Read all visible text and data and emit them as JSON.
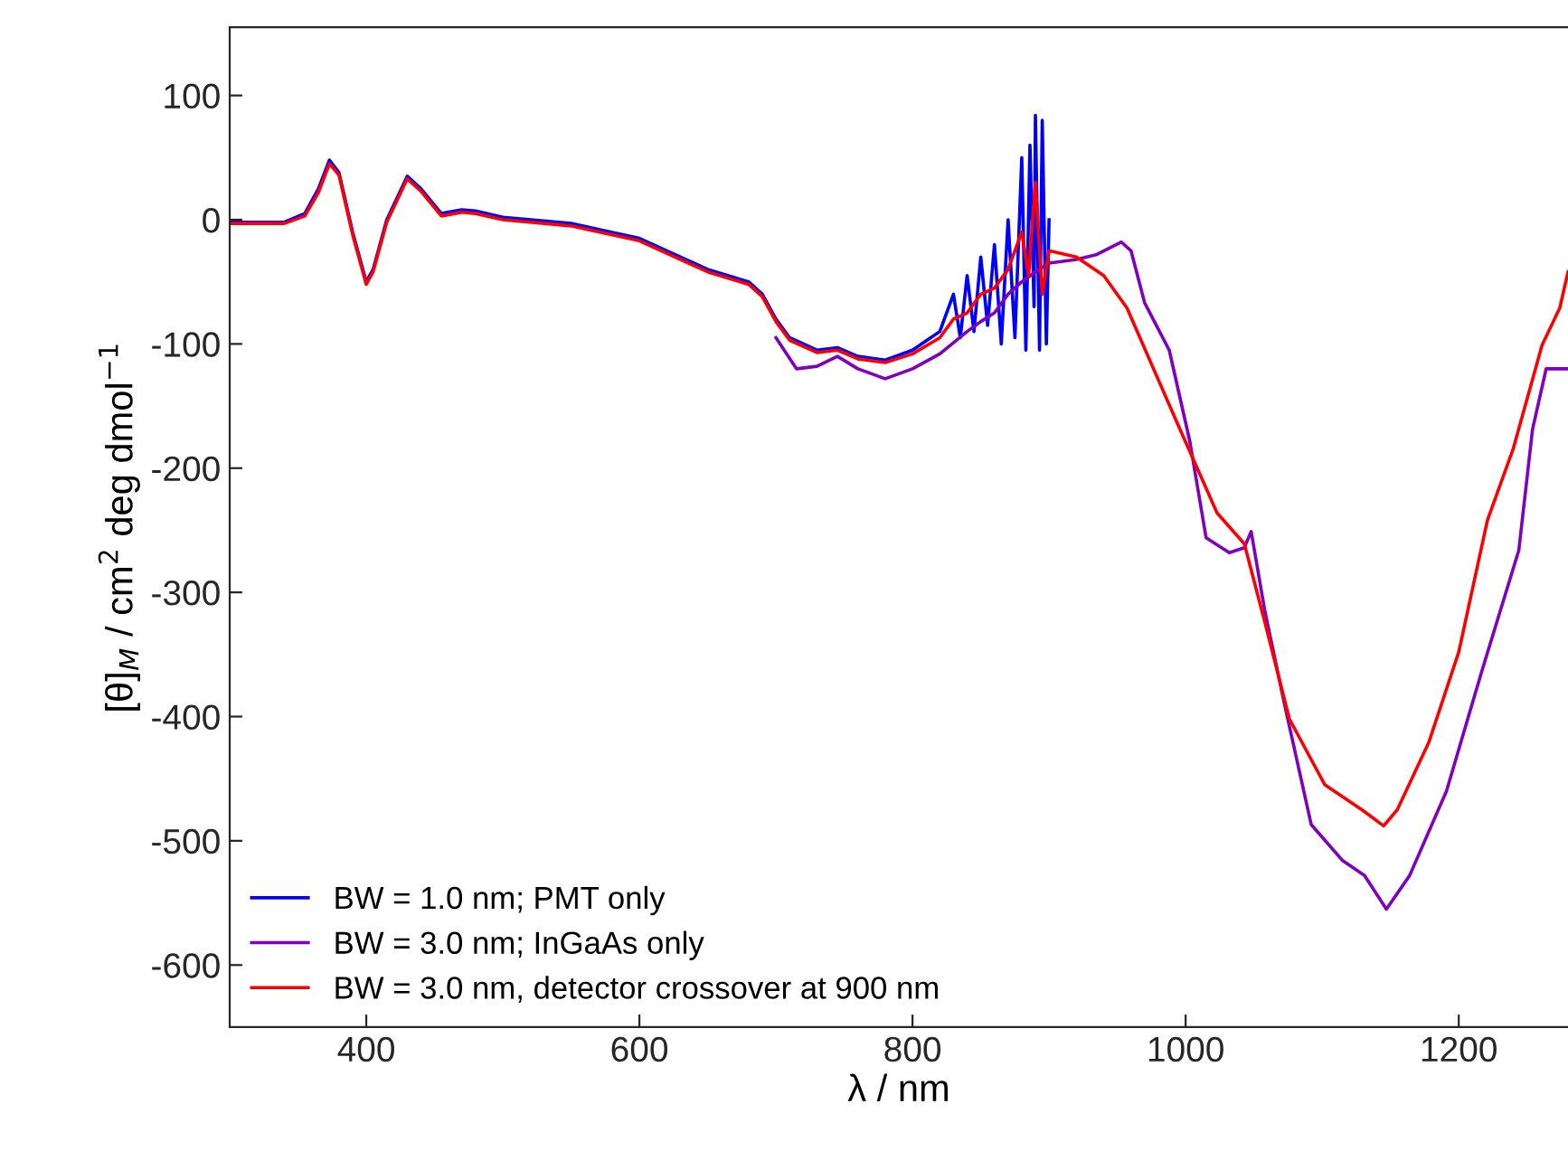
{
  "chart_data": {
    "type": "line",
    "xlabel": "λ / nm",
    "ylabel": "[θ]$_{M}$ / cm$^{2}$ deg dmol$^{−1}$",
    "xlim": [
      300,
      1280
    ],
    "ylim": [
      -650,
      155
    ],
    "xticks": [
      400,
      600,
      800,
      1000,
      1200
    ],
    "yticks": [
      -600,
      -500,
      -400,
      -300,
      -200,
      -100,
      0,
      100
    ],
    "grid": false,
    "legend": "bottom left",
    "line_style": "solid",
    "marker": "none",
    "series": [
      {
        "name": "BW = 1.0 nm; PMT only",
        "color": "#0000ff",
        "x": [
          300,
          340,
          355,
          365,
          373,
          380,
          390,
          400,
          405,
          415,
          430,
          440,
          455,
          470,
          480,
          500,
          550,
          600,
          650,
          680,
          690,
          700,
          710,
          730,
          745,
          760,
          780,
          800,
          820,
          830,
          835,
          840,
          845,
          850,
          855,
          860,
          865,
          870,
          875,
          880,
          883,
          886,
          889,
          890,
          893,
          895,
          898,
          900
        ],
        "values": [
          -2,
          -2,
          5,
          25,
          48,
          38,
          -10,
          -50,
          -40,
          0,
          35,
          25,
          5,
          8,
          7,
          2,
          -3,
          -15,
          -40,
          -50,
          -60,
          -80,
          -95,
          -105,
          -103,
          -110,
          -113,
          -105,
          -90,
          -60,
          -95,
          -45,
          -90,
          -30,
          -85,
          -20,
          -100,
          0,
          -95,
          50,
          -105,
          60,
          -70,
          84,
          -105,
          80,
          -100,
          0
        ]
      },
      {
        "name": "BW = 3.0 nm; InGaAs only",
        "color": "#7f00bf",
        "x": [
          700,
          715,
          730,
          745,
          760,
          780,
          800,
          820,
          840,
          850,
          860,
          870,
          880,
          890,
          900,
          920,
          935,
          953,
          960,
          970,
          988,
          1003,
          1015,
          1032,
          1043,
          1048,
          1058,
          1072,
          1092,
          1115,
          1131,
          1147,
          1164,
          1191,
          1217,
          1244,
          1254,
          1264,
          1280
        ],
        "values": [
          -95,
          -120,
          -118,
          -110,
          -120,
          -128,
          -120,
          -108,
          -90,
          -82,
          -75,
          -60,
          -50,
          -42,
          -35,
          -32,
          -28,
          -18,
          -25,
          -67,
          -105,
          -178,
          -256,
          -268,
          -264,
          -251,
          -315,
          -388,
          -487,
          -516,
          -528,
          -555,
          -528,
          -460,
          -363,
          -266,
          -169,
          -120,
          -120
        ]
      },
      {
        "name": "BW = 3.0 nm, detector crossover at 900 nm",
        "color": "#ff0000",
        "x": [
          300,
          340,
          355,
          365,
          373,
          380,
          390,
          400,
          405,
          415,
          430,
          440,
          455,
          470,
          480,
          500,
          550,
          600,
          650,
          680,
          690,
          700,
          710,
          730,
          745,
          760,
          780,
          800,
          820,
          830,
          840,
          850,
          860,
          870,
          880,
          885,
          890,
          895,
          900,
          920,
          940,
          957,
          996,
          1023,
          1043,
          1058,
          1076,
          1102,
          1129,
          1145,
          1155,
          1178,
          1200,
          1221,
          1240,
          1261,
          1274,
          1280
        ],
        "values": [
          -3,
          -3,
          3,
          22,
          45,
          36,
          -12,
          -52,
          -42,
          -2,
          33,
          23,
          3,
          6,
          5,
          0,
          -5,
          -17,
          -42,
          -52,
          -62,
          -82,
          -97,
          -107,
          -105,
          -112,
          -115,
          -108,
          -95,
          -80,
          -75,
          -60,
          -55,
          -40,
          -10,
          -45,
          30,
          -60,
          -25,
          -30,
          -45,
          -71,
          -169,
          -236,
          -261,
          -324,
          -402,
          -455,
          -475,
          -488,
          -475,
          -421,
          -348,
          -242,
          -184,
          -101,
          -71,
          -42
        ]
      }
    ]
  }
}
